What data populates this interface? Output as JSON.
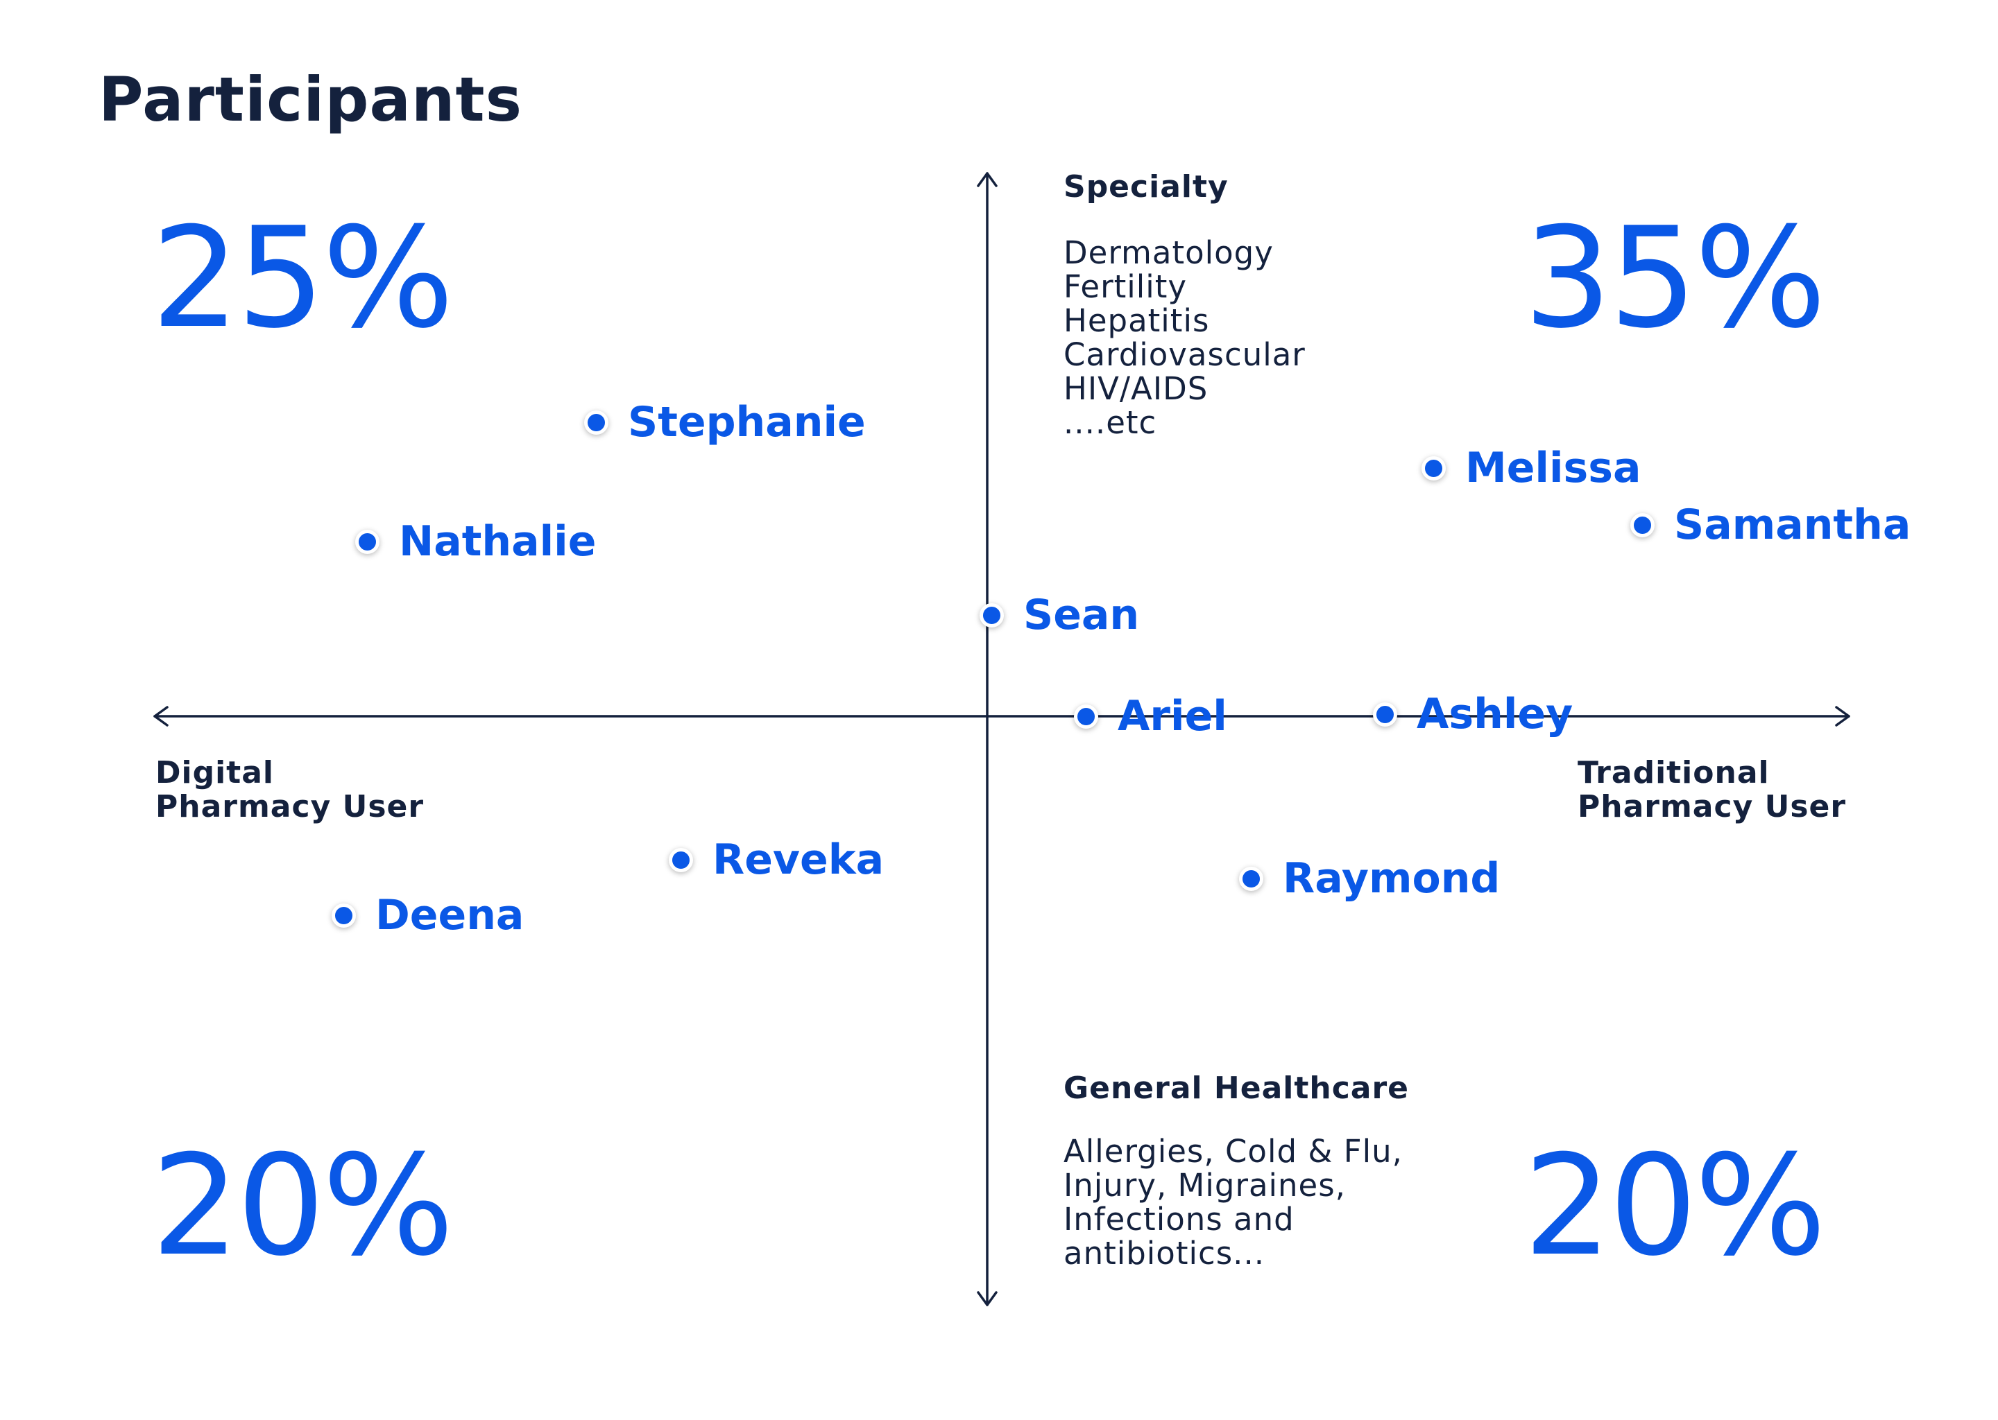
{
  "title": "Participants",
  "accent_color": "#0a58e6",
  "ink_color": "#14213d",
  "quadrant_percentages": {
    "top_left": "25%",
    "top_right": "35%",
    "bottom_left": "20%",
    "bottom_right": "20%"
  },
  "axes": {
    "vertical_top": {
      "heading": "Specialty",
      "items": [
        "Dermatology",
        "Fertility",
        "Hepatitis",
        "Cardiovascular",
        "HIV/AIDS",
        "....etc"
      ]
    },
    "vertical_bottom": {
      "heading": "General Healthcare",
      "items": [
        "Allergies, Cold & Flu,",
        "Injury, Migraines,",
        "Infections and",
        "antibiotics..."
      ]
    },
    "horizontal_left": {
      "lines": [
        "Digital",
        "Pharmacy User"
      ]
    },
    "horizontal_right": {
      "lines": [
        "Traditional",
        "Pharmacy User"
      ]
    }
  },
  "participants": [
    {
      "name": "Stephanie"
    },
    {
      "name": "Nathalie"
    },
    {
      "name": "Melissa"
    },
    {
      "name": "Samantha"
    },
    {
      "name": "Sean"
    },
    {
      "name": "Ariel"
    },
    {
      "name": "Ashley"
    },
    {
      "name": "Reveka"
    },
    {
      "name": "Deena"
    },
    {
      "name": "Raymond"
    }
  ]
}
